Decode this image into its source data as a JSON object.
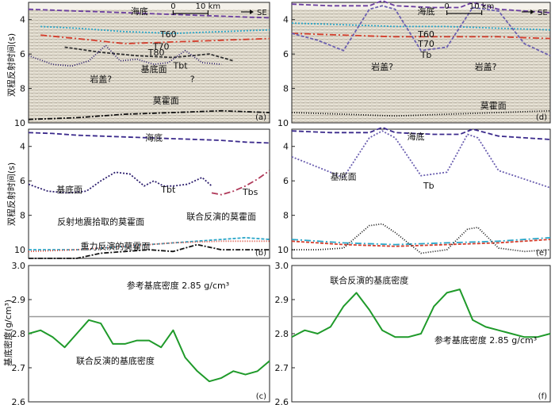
{
  "figure": {
    "ylabel_time": "双程反射时间(s)",
    "ylabel_density": "基底密度(g/cm³)"
  },
  "chart_data": [
    {
      "id": "a",
      "type": "line",
      "panel_label": "(a)",
      "ylim": [
        10,
        3
      ],
      "yticks": [
        4,
        6,
        8,
        10
      ],
      "annotations": [
        "海底",
        "T60",
        "T70",
        "T80",
        "Tbt",
        "基底面",
        "岩盖?",
        "?",
        "莫霍面"
      ],
      "scalebar": {
        "ticks": [
          "0",
          "10 km"
        ]
      },
      "direction": "SE",
      "series": [
        {
          "color": "#6a3da0",
          "x": [
            0,
            0.1,
            0.2,
            0.3,
            0.4,
            0.5,
            0.6,
            0.7,
            0.8,
            0.9,
            1
          ],
          "y": [
            3.4,
            3.45,
            3.5,
            3.55,
            3.6,
            3.65,
            3.7,
            3.75,
            3.8,
            3.85,
            3.9
          ]
        },
        {
          "color": "#2aa6c8",
          "x": [
            0.05,
            0.2,
            0.4,
            0.6,
            0.8,
            1
          ],
          "y": [
            4.4,
            4.5,
            4.7,
            4.8,
            4.7,
            4.6
          ]
        },
        {
          "color": "#d53e2d",
          "x": [
            0.05,
            0.2,
            0.4,
            0.6,
            0.8,
            1
          ],
          "y": [
            4.9,
            5.1,
            5.4,
            5.3,
            5.2,
            5.1
          ]
        },
        {
          "color": "#333333",
          "x": [
            0.15,
            0.3,
            0.45,
            0.6,
            0.75,
            0.85
          ],
          "y": [
            5.6,
            5.9,
            6.1,
            6.2,
            6.0,
            6.4
          ]
        },
        {
          "color": "#2d1f6e",
          "x": [
            0,
            0.1,
            0.18,
            0.25,
            0.32,
            0.38,
            0.45,
            0.52,
            0.58,
            0.65,
            0.72,
            0.8
          ],
          "y": [
            6.1,
            6.6,
            6.7,
            6.4,
            5.5,
            6.4,
            6.3,
            6.6,
            6.5,
            5.8,
            6.5,
            6.6
          ]
        },
        {
          "color": "#111111",
          "x": [
            0,
            0.2,
            0.4,
            0.6,
            0.8,
            1
          ],
          "y": [
            9.8,
            9.7,
            9.5,
            9.4,
            9.3,
            9.4
          ]
        }
      ]
    },
    {
      "id": "b",
      "type": "line",
      "panel_label": "(b)",
      "ylim": [
        10.5,
        3
      ],
      "yticks": [
        4,
        6,
        8,
        10
      ],
      "annotations": [
        "海底",
        "基底面",
        "Tbt",
        "Tbs",
        "反射地震拾取的莫霍面",
        "联合反演的莫霍面",
        "重力反演的莫霍面"
      ],
      "series": [
        {
          "name": "海底",
          "color": "#3b2a8c",
          "x": [
            0,
            0.1,
            0.2,
            0.3,
            0.4,
            0.5,
            0.6,
            0.7,
            0.8,
            0.9,
            1
          ],
          "y": [
            3.2,
            3.25,
            3.35,
            3.4,
            3.45,
            3.5,
            3.55,
            3.6,
            3.65,
            3.75,
            3.8
          ]
        },
        {
          "name": "基底面",
          "color": "#2d1f6e",
          "x": [
            0,
            0.08,
            0.16,
            0.24,
            0.3,
            0.36,
            0.42,
            0.48,
            0.52,
            0.56,
            0.6,
            0.66,
            0.72,
            0.76
          ],
          "y": [
            6.2,
            6.6,
            6.7,
            6.6,
            6.0,
            5.5,
            5.6,
            6.3,
            6.0,
            6.3,
            6.3,
            6.2,
            5.8,
            6.3
          ]
        },
        {
          "name": "Tbs",
          "color": "#b03a5a",
          "x": [
            0.76,
            0.8,
            0.85,
            0.9,
            0.95,
            1
          ],
          "y": [
            6.7,
            6.8,
            6.6,
            6.3,
            5.9,
            5.4
          ]
        },
        {
          "name": "反射地震拾取的莫霍面",
          "color": "#2aa6c8",
          "x": [
            0,
            0.2,
            0.4,
            0.6,
            0.8,
            0.9,
            1
          ],
          "y": [
            10.0,
            10.0,
            9.8,
            9.6,
            9.4,
            9.3,
            9.4
          ]
        },
        {
          "name": "联合反演的莫霍面",
          "color": "#d53e2d",
          "x": [
            0,
            0.2,
            0.4,
            0.6,
            0.8,
            0.9,
            1
          ],
          "y": [
            10.1,
            10.0,
            9.8,
            9.6,
            9.5,
            9.5,
            9.5
          ]
        },
        {
          "name": "重力反演的莫霍面",
          "color": "#111111",
          "x": [
            0,
            0.1,
            0.2,
            0.3,
            0.4,
            0.5,
            0.6,
            0.7,
            0.8,
            0.9,
            1
          ],
          "y": [
            10.5,
            10.5,
            10.5,
            10.2,
            10.1,
            10.0,
            10.1,
            9.7,
            10.0,
            10.0,
            10.0
          ]
        }
      ]
    },
    {
      "id": "c",
      "type": "line",
      "panel_label": "(c)",
      "ylabel": "基底密度(g/cm³)",
      "ylim": [
        2.6,
        3.0
      ],
      "yticks": [
        2.6,
        2.7,
        2.8,
        2.9,
        3.0
      ],
      "annotations": [
        "参考基底密度 2.85 g/cm³",
        "联合反演的基底密度"
      ],
      "reference_line": {
        "value": 2.85,
        "color": "#999999"
      },
      "series": [
        {
          "name": "联合反演的基底密度",
          "color": "#1f9a2a",
          "x": [
            0,
            0.05,
            0.1,
            0.15,
            0.2,
            0.25,
            0.3,
            0.35,
            0.4,
            0.45,
            0.5,
            0.55,
            0.6,
            0.65,
            0.7,
            0.75,
            0.8,
            0.85,
            0.9,
            0.95,
            1
          ],
          "y": [
            2.8,
            2.81,
            2.79,
            2.76,
            2.8,
            2.84,
            2.83,
            2.77,
            2.77,
            2.78,
            2.78,
            2.76,
            2.81,
            2.73,
            2.69,
            2.66,
            2.67,
            2.69,
            2.68,
            2.69,
            2.72
          ]
        }
      ]
    },
    {
      "id": "d",
      "type": "line",
      "panel_label": "(d)",
      "ylim": [
        10,
        3
      ],
      "yticks": [
        4,
        6,
        8,
        10
      ],
      "annotations": [
        "海底",
        "T60",
        "T70",
        "Tb",
        "岩盖?",
        "岩盖?",
        "莫霍面"
      ],
      "scalebar": {
        "ticks": [
          "0",
          "10 km"
        ]
      },
      "direction": "SE",
      "series": [
        {
          "color": "#6a3da0",
          "x": [
            0,
            0.15,
            0.3,
            0.35,
            0.4,
            0.55,
            0.65,
            0.7,
            0.8,
            1
          ],
          "y": [
            3.1,
            3.2,
            3.2,
            2.9,
            3.2,
            3.3,
            3.3,
            3.0,
            3.4,
            3.6
          ]
        },
        {
          "color": "#2aa6c8",
          "x": [
            0,
            0.2,
            0.4,
            0.6,
            0.8,
            1
          ],
          "y": [
            4.2,
            4.3,
            4.4,
            4.4,
            4.5,
            4.6
          ]
        },
        {
          "color": "#d53e2d",
          "x": [
            0,
            0.2,
            0.4,
            0.6,
            0.8,
            1
          ],
          "y": [
            4.8,
            4.9,
            5.0,
            5.0,
            5.0,
            5.1
          ]
        },
        {
          "color": "#6b5fb0",
          "x": [
            0,
            0.1,
            0.2,
            0.3,
            0.35,
            0.4,
            0.5,
            0.6,
            0.7,
            0.8,
            0.9,
            1
          ],
          "y": [
            4.8,
            5.2,
            5.8,
            3.4,
            3.2,
            3.4,
            5.8,
            5.6,
            3.3,
            3.5,
            5.4,
            6.1
          ]
        },
        {
          "color": "#111111",
          "x": [
            0,
            0.2,
            0.4,
            0.6,
            0.8,
            1
          ],
          "y": [
            9.4,
            9.5,
            9.6,
            9.5,
            9.4,
            9.3
          ]
        }
      ]
    },
    {
      "id": "e",
      "type": "line",
      "panel_label": "(e)",
      "ylim": [
        10.5,
        3
      ],
      "yticks": [
        4,
        6,
        8,
        10
      ],
      "annotations": [
        "海底",
        "基底面",
        "Tb"
      ],
      "series": [
        {
          "name": "海底",
          "color": "#3b2a8c",
          "x": [
            0,
            0.15,
            0.3,
            0.35,
            0.4,
            0.55,
            0.65,
            0.7,
            0.8,
            1
          ],
          "y": [
            3.1,
            3.2,
            3.2,
            2.9,
            3.2,
            3.3,
            3.3,
            3.0,
            3.4,
            3.6
          ]
        },
        {
          "name": "基底面",
          "color": "#6b5fb0",
          "x": [
            0,
            0.1,
            0.2,
            0.3,
            0.35,
            0.4,
            0.5,
            0.6,
            0.68,
            0.72,
            0.8,
            0.9,
            1
          ],
          "y": [
            4.6,
            5.2,
            5.8,
            3.5,
            3.1,
            3.5,
            5.7,
            5.5,
            3.3,
            3.5,
            5.4,
            5.9,
            6.4
          ]
        },
        {
          "name": "反射地震拾取的莫霍面",
          "color": "#2aa6c8",
          "x": [
            0,
            0.2,
            0.4,
            0.6,
            0.8,
            1
          ],
          "y": [
            9.4,
            9.6,
            9.7,
            9.6,
            9.5,
            9.3
          ]
        },
        {
          "name": "联合反演的莫霍面",
          "color": "#d53e2d",
          "x": [
            0,
            0.2,
            0.4,
            0.6,
            0.8,
            1
          ],
          "y": [
            9.5,
            9.7,
            9.8,
            9.7,
            9.6,
            9.4
          ]
        },
        {
          "name": "重力反演的莫霍面",
          "color": "#111111",
          "x": [
            0,
            0.1,
            0.2,
            0.3,
            0.35,
            0.4,
            0.5,
            0.6,
            0.68,
            0.72,
            0.8,
            0.9,
            1
          ],
          "y": [
            10.0,
            10.0,
            9.9,
            8.6,
            8.5,
            9.0,
            10.2,
            10.0,
            8.8,
            8.7,
            9.9,
            10.1,
            10.0
          ]
        }
      ]
    },
    {
      "id": "f",
      "type": "line",
      "panel_label": "(f)",
      "ylim": [
        2.6,
        3.0
      ],
      "yticks": [
        2.6,
        2.7,
        2.8,
        2.9,
        3.0
      ],
      "annotations": [
        "联合反演的基底密度",
        "参考基底密度 2.85 g/cm³"
      ],
      "reference_line": {
        "value": 2.85,
        "color": "#999999"
      },
      "series": [
        {
          "name": "联合反演的基底密度",
          "color": "#1f9a2a",
          "x": [
            0,
            0.05,
            0.1,
            0.15,
            0.2,
            0.25,
            0.3,
            0.35,
            0.4,
            0.45,
            0.5,
            0.55,
            0.6,
            0.65,
            0.7,
            0.75,
            0.8,
            0.85,
            0.9,
            0.95,
            1
          ],
          "y": [
            2.79,
            2.81,
            2.8,
            2.82,
            2.88,
            2.92,
            2.87,
            2.81,
            2.79,
            2.79,
            2.8,
            2.88,
            2.92,
            2.93,
            2.84,
            2.82,
            2.81,
            2.8,
            2.79,
            2.79,
            2.8
          ]
        }
      ]
    }
  ]
}
